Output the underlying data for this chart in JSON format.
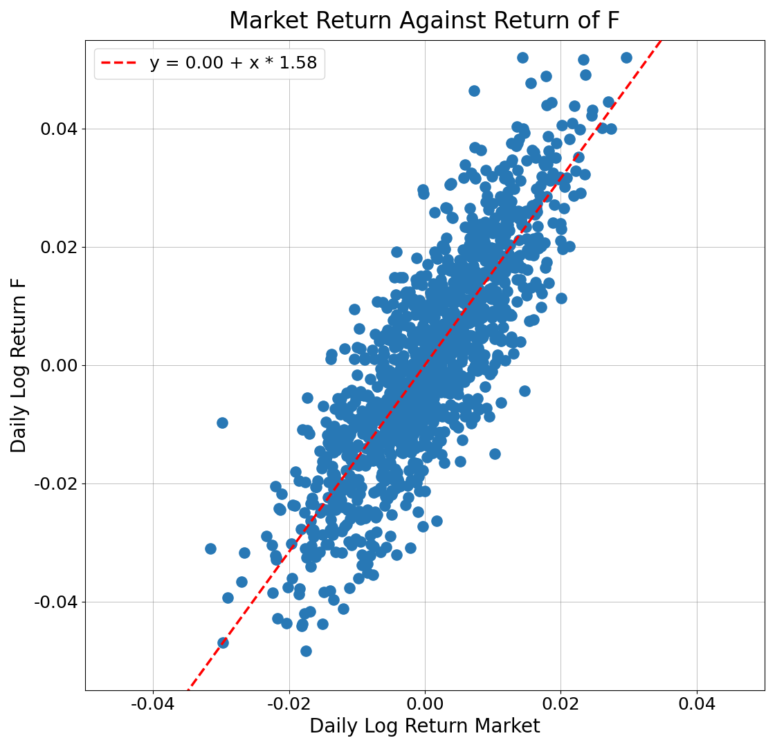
{
  "title": "Market Return Against Return of F",
  "xlabel": "Daily Log Return Market",
  "ylabel": "Daily Log Return F",
  "intercept": 0.0,
  "slope": 1.58,
  "legend_label": "y = 0.00 + x * 1.58",
  "xlim": [
    -0.05,
    0.05
  ],
  "ylim": [
    -0.055,
    0.055
  ],
  "scatter_color": "#2878b5",
  "line_color": "red",
  "dot_size": 120,
  "grid": true,
  "random_seed": 7,
  "n_points": 1200,
  "market_std": 0.01,
  "noise_std": 0.01,
  "title_fontsize": 24,
  "label_fontsize": 20,
  "tick_fontsize": 18,
  "legend_fontsize": 18,
  "figwidth": 11.2,
  "figheight": 10.8
}
